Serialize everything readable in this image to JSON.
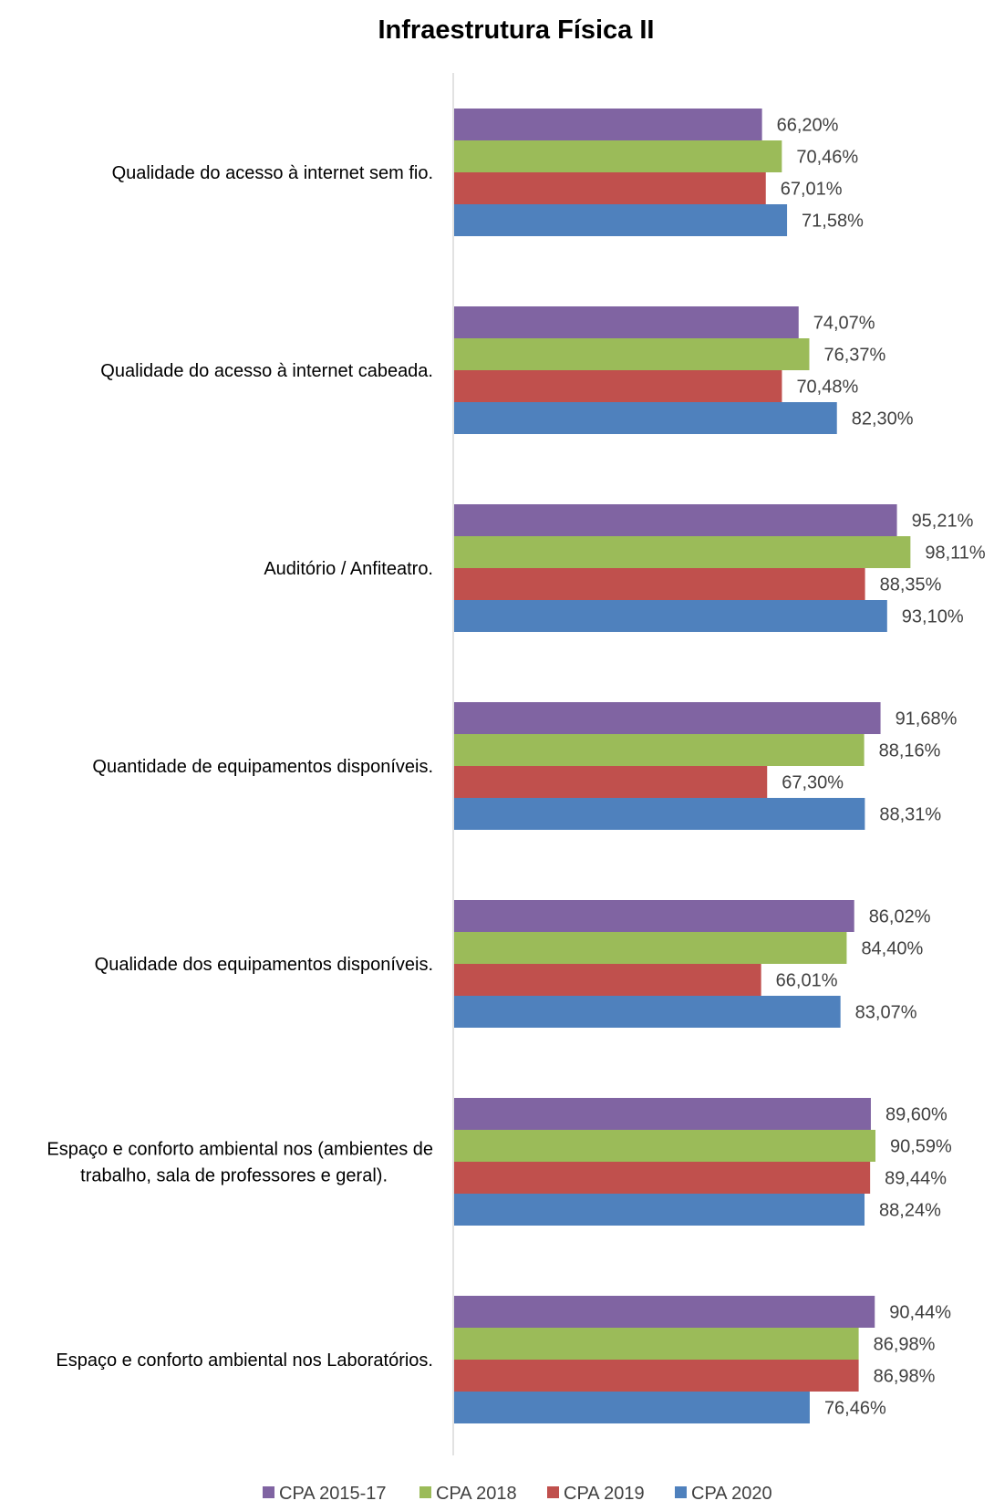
{
  "chart_data": {
    "type": "bar",
    "orientation": "horizontal",
    "title": "Infraestrutura Física II",
    "xlabel": "",
    "ylabel": "",
    "xlim": [
      0,
      100
    ],
    "grid": false,
    "legend_position": "bottom",
    "categories": [
      [
        "Qualidade do acesso à  internet sem fio."
      ],
      [
        "Qualidade do acesso à internet cabeada."
      ],
      [
        "Auditório / Anfiteatro."
      ],
      [
        "Quantidade de equipamentos disponíveis."
      ],
      [
        "Qualidade dos equipamentos disponíveis."
      ],
      [
        "Espaço e conforto ambiental nos (ambientes de",
        "trabalho, sala de professores e geral)."
      ],
      [
        "Espaço e conforto ambiental nos Laboratórios."
      ]
    ],
    "series": [
      {
        "name": "CPA 2015-17",
        "color": "#8064A2",
        "values": [
          66.2,
          74.07,
          95.21,
          91.68,
          86.02,
          89.6,
          90.44
        ],
        "labels": [
          "66,20%",
          "74,07%",
          "95,21%",
          "91,68%",
          "86,02%",
          "89,60%",
          "90,44%"
        ]
      },
      {
        "name": "CPA 2018",
        "color": "#9BBB59",
        "values": [
          70.46,
          76.37,
          98.11,
          88.16,
          84.4,
          90.59,
          86.98
        ],
        "labels": [
          "70,46%",
          "76,37%",
          "98,11%",
          "88,16%",
          "84,40%",
          "90,59%",
          "86,98%"
        ]
      },
      {
        "name": "CPA 2019",
        "color": "#C0504D",
        "values": [
          67.01,
          70.48,
          88.35,
          67.3,
          66.01,
          89.44,
          86.98
        ],
        "labels": [
          "67,01%",
          "70,48%",
          "88,35%",
          "67,30%",
          "66,01%",
          "89,44%",
          "86,98%"
        ]
      },
      {
        "name": "CPA 2020",
        "color": "#4F81BD",
        "values": [
          71.58,
          82.3,
          93.1,
          88.31,
          83.07,
          88.24,
          76.46
        ],
        "labels": [
          "71,58%",
          "82,30%",
          "93,10%",
          "88,31%",
          "83,07%",
          "88,24%",
          "76,46%"
        ]
      }
    ]
  }
}
